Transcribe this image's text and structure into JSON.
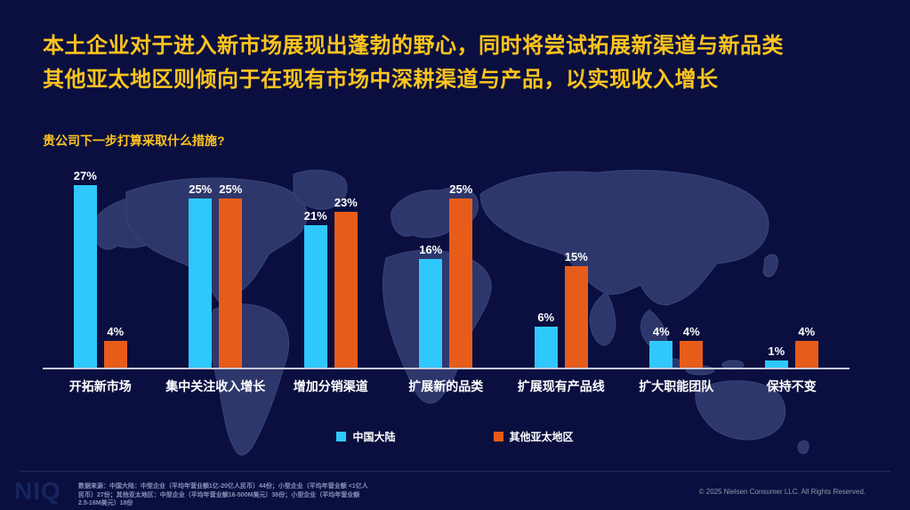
{
  "title": {
    "line1": "本土企业对于进入新市场展现出蓬勃的野心，同时将尝试拓展新渠道与新品类",
    "line2": "其他亚太地区则倾向于在现有市场中深耕渠道与产品，以实现收入增长"
  },
  "subtitle": "贵公司下一步打算采取什么措施?",
  "chart_data": {
    "type": "bar",
    "categories": [
      "开拓新市场",
      "集中关注收入增长",
      "增加分销渠道",
      "扩展新的品类",
      "扩展现有产品线",
      "扩大职能团队",
      "保持不变"
    ],
    "series": [
      {
        "name": "中国大陆",
        "color": "#2fc8fd",
        "values": [
          27,
          25,
          21,
          16,
          6,
          4,
          1
        ]
      },
      {
        "name": "其他亚太地区",
        "color": "#e85c1a",
        "values": [
          4,
          25,
          23,
          25,
          15,
          4,
          4
        ]
      }
    ],
    "value_suffix": "%",
    "title": "贵公司下一步打算采取什么措施?",
    "xlabel": "",
    "ylabel": "",
    "ylim": [
      0,
      30
    ],
    "grid": false,
    "legend_position": "bottom",
    "value_labels": "above-bars"
  },
  "footer": {
    "logo_text": "NIQ",
    "source_lines": {
      "l1": "数据来源：中国大陆：中型企业（平均年营业额1亿-20亿人民币）44份；小型企业（平均年营业额 <1亿人",
      "l2": "民币）27份；其他亚太地区：中型企业（平均年营业额16-500M美元）36份；小型企业（平均年营业额",
      "l3": "2.5-16M美元）18份"
    },
    "copyright": "© 2025 Nielsen Consumer LLC. All Rights Reserved."
  },
  "colors": {
    "background": "#0a0f3f",
    "headline": "#ffc41e",
    "series_china": "#2fc8fd",
    "series_apac": "#e85c1a",
    "map_fill": "#2e376b",
    "axis": "#c6c9d6"
  }
}
